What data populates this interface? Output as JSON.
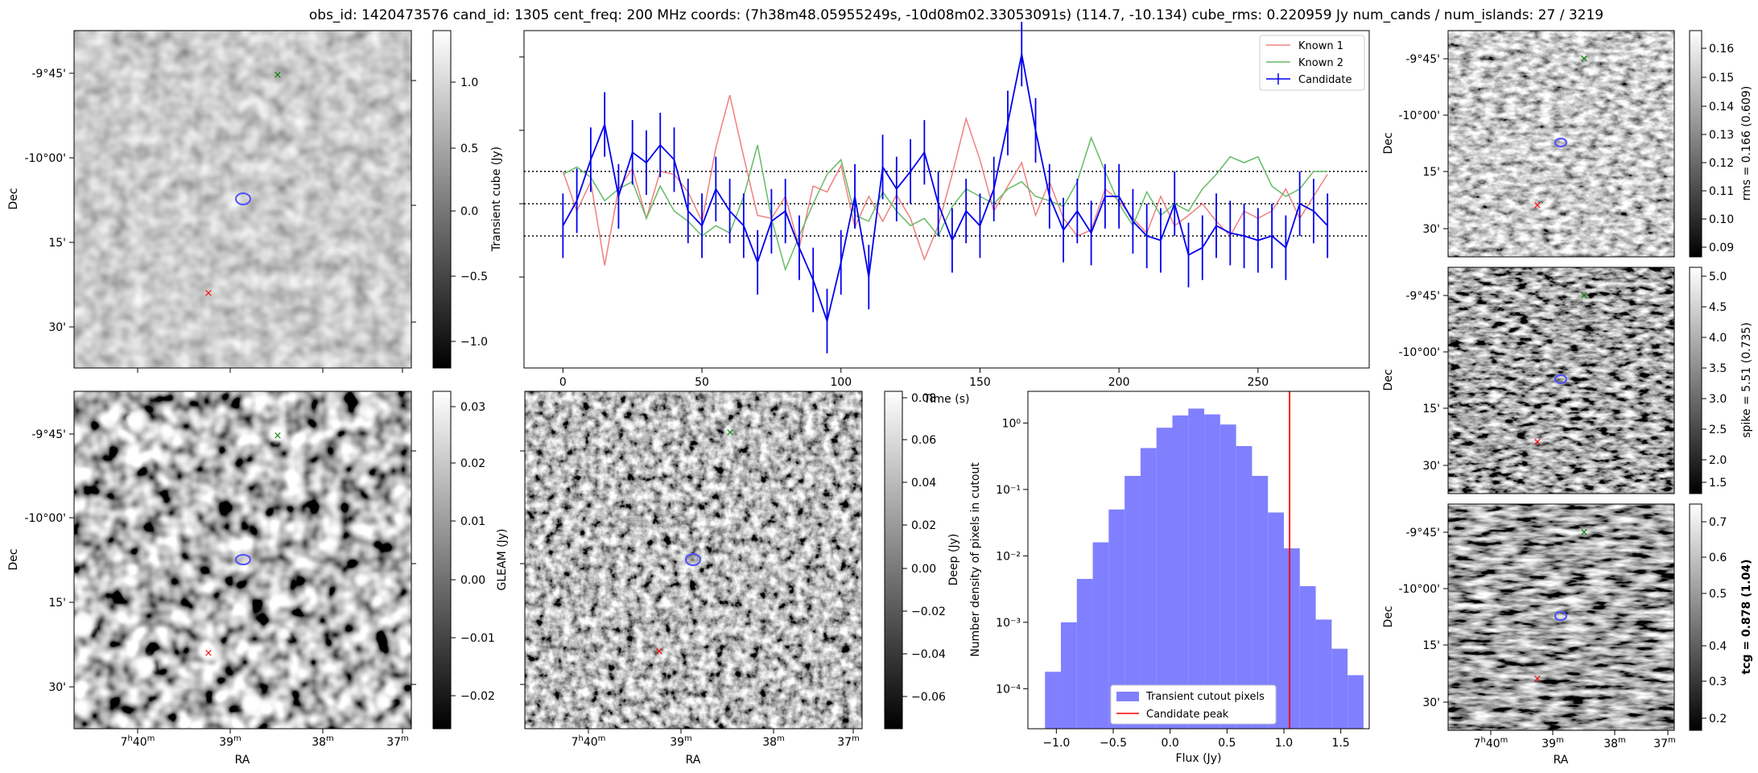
{
  "header": {
    "title": "obs_id: 1420473576 cand_id: 1305 cent_freq: 200 MHz coords: (7h38m48.05955249s, -10d08m02.33053091s) (114.7, -10.134) cube_rms: 0.220959 Jy num_cands / num_islands: 27 / 3219"
  },
  "sky_axes": {
    "dec_ticks": [
      "-9°45'",
      "-10°00'",
      "15'",
      "30'"
    ],
    "ra_ticks": [
      [
        "7",
        "h",
        "40",
        "m"
      ],
      [
        "39",
        "m"
      ],
      [
        "38",
        "m"
      ],
      [
        "37",
        "m"
      ]
    ],
    "ra_label": "RA",
    "dec_label": "Dec"
  },
  "panels": {
    "transient": {
      "cbar_label": "Transient cube (Jy)",
      "cbar_ticks": [
        "1.0",
        "0.5",
        "0.0",
        "−0.5",
        "−1.0"
      ]
    },
    "gleam": {
      "cbar_label": "GLEAM (Jy)",
      "cbar_ticks": [
        "0.03",
        "0.02",
        "0.01",
        "0.00",
        "−0.01",
        "−0.02"
      ]
    },
    "deep": {
      "cbar_label": "Deep (Jy)",
      "cbar_ticks": [
        "0.08",
        "0.06",
        "0.04",
        "0.02",
        "0.00",
        "−0.02",
        "−0.04",
        "−0.06"
      ]
    },
    "rms": {
      "cbar_label": "rms = 0.166 (0.609)",
      "cbar_ticks": [
        "0.16",
        "0.15",
        "0.14",
        "0.13",
        "0.12",
        "0.11",
        "0.10",
        "0.09"
      ]
    },
    "spike": {
      "cbar_label": "spike = 5.51 (0.735)",
      "cbar_ticks": [
        "5.0",
        "4.5",
        "4.0",
        "3.5",
        "3.0",
        "2.5",
        "2.0",
        "1.5"
      ]
    },
    "tcg": {
      "cbar_label": "tcg = 0.878 (1.04)",
      "cbar_ticks": [
        "0.7",
        "0.6",
        "0.5",
        "0.4",
        "0.3",
        "0.2"
      ]
    }
  },
  "colors": {
    "known1": "#f08080",
    "known2": "#66bb66",
    "candidate": "#0000ee",
    "hist": "#8080ff",
    "peak": "#ff0000"
  },
  "chart_data": [
    {
      "type": "line",
      "name": "lightcurve",
      "xlabel": "Time (s)",
      "xlim": [
        -14,
        290
      ],
      "ylim": [
        -1.12,
        1.18
      ],
      "xticks": [
        0,
        50,
        100,
        150,
        200,
        250
      ],
      "hlines": [
        0.22,
        0.0,
        -0.22
      ],
      "legend": [
        "Known 1",
        "Known 2",
        "Candidate"
      ],
      "legend_position": "top-right",
      "series": [
        {
          "name": "Known 1",
          "x": [
            0,
            5,
            10,
            15,
            20,
            25,
            30,
            35,
            40,
            45,
            50,
            55,
            60,
            65,
            70,
            75,
            80,
            85,
            90,
            95,
            100,
            105,
            110,
            115,
            120,
            125,
            130,
            135,
            140,
            145,
            150,
            155,
            160,
            165,
            170,
            175,
            180,
            185,
            190,
            195,
            200,
            205,
            210,
            215,
            220,
            225,
            230,
            235,
            240,
            245,
            250,
            255,
            260,
            265,
            270,
            275
          ],
          "y": [
            0.22,
            -0.05,
            0.15,
            -0.42,
            0.1,
            0.24,
            -0.1,
            0.22,
            0.2,
            0.08,
            -0.12,
            0.38,
            0.74,
            0.32,
            -0.08,
            -0.1,
            0.05,
            -0.3,
            0.12,
            0.08,
            0.26,
            -0.16,
            0.05,
            -0.12,
            0.06,
            -0.1,
            -0.38,
            -0.15,
            0.2,
            0.58,
            0.3,
            -0.05,
            0.12,
            0.28,
            -0.08,
            0.15,
            -0.1,
            -0.22,
            -0.18,
            0.1,
            0.02,
            -0.1,
            -0.2,
            0.05,
            -0.15,
            -0.08,
            0.0,
            -0.12,
            -0.22,
            -0.05,
            -0.1,
            -0.05,
            0.1,
            -0.1,
            0.05,
            0.2
          ]
        },
        {
          "name": "Known 2",
          "x": [
            0,
            5,
            10,
            15,
            20,
            25,
            30,
            35,
            40,
            45,
            50,
            55,
            60,
            65,
            70,
            75,
            80,
            85,
            90,
            95,
            100,
            105,
            110,
            115,
            120,
            125,
            130,
            135,
            140,
            145,
            150,
            155,
            160,
            165,
            170,
            175,
            180,
            185,
            190,
            195,
            200,
            205,
            210,
            215,
            220,
            225,
            230,
            235,
            240,
            245,
            250,
            255,
            260,
            265,
            270,
            275
          ],
          "y": [
            0.2,
            0.25,
            0.18,
            0.02,
            0.1,
            0.15,
            -0.1,
            0.12,
            -0.05,
            -0.12,
            -0.22,
            -0.15,
            -0.2,
            0.05,
            0.4,
            -0.1,
            -0.45,
            -0.22,
            0.0,
            0.2,
            0.3,
            -0.08,
            -0.12,
            0.08,
            -0.05,
            -0.15,
            -0.1,
            -0.22,
            -0.02,
            0.1,
            0.05,
            0.0,
            0.1,
            0.15,
            0.05,
            0.02,
            -0.02,
            0.15,
            0.45,
            0.22,
            0.0,
            -0.15,
            0.08,
            -0.08,
            0.0,
            -0.05,
            0.1,
            0.2,
            0.32,
            0.28,
            0.32,
            0.12,
            0.05,
            0.1,
            0.22,
            0.22
          ]
        },
        {
          "name": "Candidate",
          "x": [
            0,
            5,
            10,
            15,
            20,
            25,
            30,
            35,
            40,
            45,
            50,
            55,
            60,
            65,
            70,
            75,
            80,
            85,
            90,
            95,
            100,
            105,
            110,
            115,
            120,
            125,
            130,
            135,
            140,
            145,
            150,
            155,
            160,
            165,
            170,
            175,
            180,
            185,
            190,
            195,
            200,
            205,
            210,
            215,
            220,
            225,
            230,
            235,
            240,
            245,
            250,
            255,
            260,
            265,
            270,
            275
          ],
          "y": [
            -0.15,
            0.02,
            0.3,
            0.54,
            0.05,
            0.35,
            0.28,
            0.4,
            0.3,
            -0.05,
            -0.15,
            0.1,
            -0.05,
            -0.15,
            -0.4,
            -0.12,
            -0.05,
            -0.3,
            -0.52,
            -0.8,
            -0.4,
            0.05,
            -0.5,
            0.25,
            0.1,
            0.22,
            0.35,
            0.0,
            -0.25,
            -0.05,
            -0.15,
            0.1,
            0.55,
            1.02,
            0.5,
            0.05,
            -0.18,
            -0.05,
            -0.2,
            0.05,
            0.05,
            -0.12,
            -0.22,
            -0.25,
            0.0,
            -0.35,
            -0.3,
            -0.15,
            -0.2,
            -0.22,
            -0.25,
            -0.22,
            -0.3,
            0.0,
            -0.05,
            -0.15
          ],
          "yerr": 0.22
        }
      ]
    },
    {
      "type": "bar",
      "name": "histogram",
      "xlabel": "Flux (Jy)",
      "ylabel": "Number density of pixels in cutout",
      "yscale": "log",
      "ylim": [
        2.5e-05,
        3.0
      ],
      "xlim": [
        -1.25,
        1.75
      ],
      "xticks": [
        -1.0,
        -0.5,
        0.0,
        0.5,
        1.0,
        1.5
      ],
      "xtick_labels": [
        "−1.0",
        "−0.5",
        "0.0",
        "0.5",
        "1.0",
        "1.5"
      ],
      "ytick_labels": [
        "10⁰",
        "10⁻¹",
        "10⁻²",
        "10⁻³",
        "10⁻⁴"
      ],
      "bin_edges": [
        -1.1,
        -0.96,
        -0.82,
        -0.68,
        -0.54,
        -0.4,
        -0.26,
        -0.12,
        0.02,
        0.16,
        0.3,
        0.44,
        0.58,
        0.72,
        0.86,
        1.0,
        1.14,
        1.28,
        1.42,
        1.56,
        1.7
      ],
      "values": [
        0.00018,
        0.001,
        0.0045,
        0.016,
        0.05,
        0.16,
        0.42,
        0.85,
        1.3,
        1.65,
        1.35,
        0.95,
        0.45,
        0.16,
        0.045,
        0.013,
        0.0035,
        0.0011,
        0.0004,
        0.00016
      ],
      "peak": 1.05,
      "legend": [
        "Transient cutout pixels",
        "Candidate peak"
      ],
      "legend_position": "lower-center"
    }
  ]
}
